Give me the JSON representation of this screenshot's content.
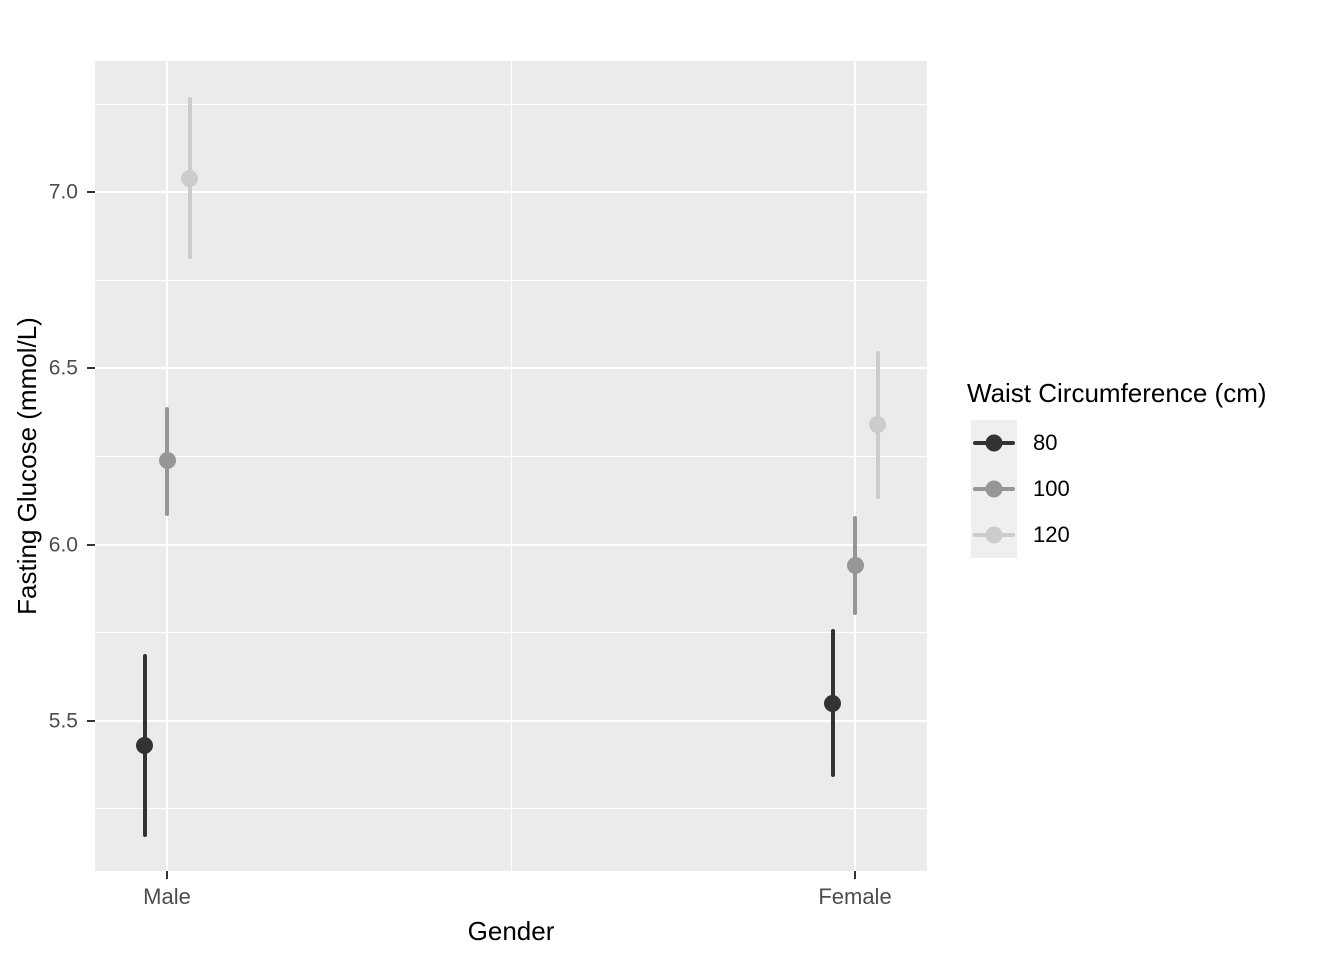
{
  "chart_data": {
    "type": "pointrange",
    "title": "",
    "xlabel": "Gender",
    "ylabel": "Fasting Glucose (mmol/L)",
    "categories": [
      "Male",
      "Female"
    ],
    "legend": {
      "title": "Waist Circumference (cm)",
      "position": "right",
      "entries": [
        "80",
        "100",
        "120"
      ]
    },
    "series": [
      {
        "name": "80",
        "color": "#333333",
        "points": [
          {
            "x": "Male",
            "y": 5.43,
            "ymin": 5.17,
            "ymax": 5.69
          },
          {
            "x": "Female",
            "y": 5.55,
            "ymin": 5.34,
            "ymax": 5.76
          }
        ]
      },
      {
        "name": "100",
        "color": "#969696",
        "points": [
          {
            "x": "Male",
            "y": 6.24,
            "ymin": 6.08,
            "ymax": 6.39
          },
          {
            "x": "Female",
            "y": 5.94,
            "ymin": 5.8,
            "ymax": 6.08
          }
        ]
      },
      {
        "name": "120",
        "color": "#CCCCCC",
        "points": [
          {
            "x": "Male",
            "y": 7.04,
            "ymin": 6.81,
            "ymax": 7.27
          },
          {
            "x": "Female",
            "y": 6.34,
            "ymin": 6.13,
            "ymax": 6.55
          }
        ]
      }
    ],
    "y_axis": {
      "tick_labels": [
        "7.0",
        "6.5",
        "6.0",
        "5.5"
      ],
      "ticks": [
        7.0,
        6.5,
        6.0,
        5.5
      ],
      "minor_ticks": [
        7.25,
        6.75,
        6.25,
        5.75,
        5.25
      ],
      "range": [
        5.07,
        7.37
      ],
      "grid": true
    },
    "x_axis": {
      "tick_labels": [
        "Male",
        "Female"
      ]
    },
    "style": {
      "panel_bg": "#EBEBEB",
      "grid_color": "#FFFFFF",
      "axis_text_color": "#4D4D4D",
      "title_color": "#000000"
    }
  }
}
